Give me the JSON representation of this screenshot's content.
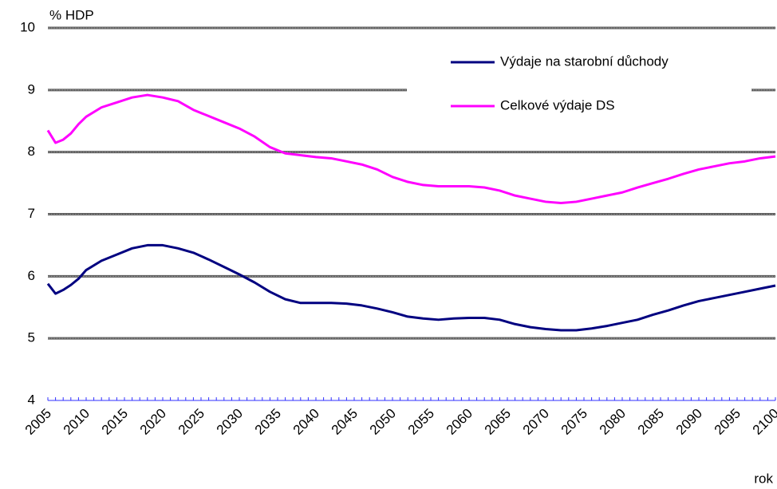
{
  "chart_data": {
    "type": "line",
    "y_label": "% HDP",
    "x_label": "rok",
    "x": [
      2005,
      2006,
      2007,
      2008,
      2009,
      2010,
      2012,
      2014,
      2016,
      2018,
      2020,
      2022,
      2024,
      2026,
      2028,
      2030,
      2032,
      2034,
      2036,
      2038,
      2040,
      2042,
      2044,
      2046,
      2048,
      2050,
      2052,
      2054,
      2056,
      2058,
      2060,
      2062,
      2064,
      2066,
      2068,
      2070,
      2072,
      2074,
      2076,
      2078,
      2080,
      2082,
      2084,
      2086,
      2088,
      2090,
      2092,
      2094,
      2096,
      2098,
      2100
    ],
    "series": [
      {
        "name": "Výdaje na starobní důchody",
        "color": "#000080",
        "values": [
          5.88,
          5.72,
          5.78,
          5.86,
          5.96,
          6.1,
          6.25,
          6.35,
          6.45,
          6.5,
          6.5,
          6.45,
          6.38,
          6.27,
          6.15,
          6.03,
          5.9,
          5.75,
          5.63,
          5.57,
          5.57,
          5.57,
          5.56,
          5.53,
          5.48,
          5.42,
          5.35,
          5.32,
          5.3,
          5.32,
          5.33,
          5.33,
          5.3,
          5.23,
          5.18,
          5.15,
          5.13,
          5.13,
          5.16,
          5.2,
          5.25,
          5.3,
          5.38,
          5.45,
          5.53,
          5.6,
          5.65,
          5.7,
          5.75,
          5.8,
          5.85
        ]
      },
      {
        "name": "Celkové výdaje DS",
        "color": "#ff00ff",
        "values": [
          8.35,
          8.15,
          8.2,
          8.3,
          8.45,
          8.57,
          8.72,
          8.8,
          8.88,
          8.92,
          8.88,
          8.82,
          8.68,
          8.58,
          8.48,
          8.38,
          8.25,
          8.08,
          7.98,
          7.95,
          7.92,
          7.9,
          7.85,
          7.8,
          7.72,
          7.6,
          7.52,
          7.47,
          7.45,
          7.45,
          7.45,
          7.43,
          7.38,
          7.3,
          7.25,
          7.2,
          7.18,
          7.2,
          7.25,
          7.3,
          7.35,
          7.43,
          7.5,
          7.57,
          7.65,
          7.72,
          7.77,
          7.82,
          7.85,
          7.9,
          7.93
        ]
      }
    ],
    "xlim": [
      2005,
      2100
    ],
    "xticks": [
      2005,
      2010,
      2015,
      2020,
      2025,
      2030,
      2035,
      2040,
      2045,
      2050,
      2055,
      2060,
      2065,
      2070,
      2075,
      2080,
      2085,
      2090,
      2095,
      2100
    ],
    "ylim": [
      4,
      10
    ],
    "yticks": [
      4,
      5,
      6,
      7,
      8,
      9,
      10
    ],
    "grid": true,
    "legend": "upper right"
  }
}
